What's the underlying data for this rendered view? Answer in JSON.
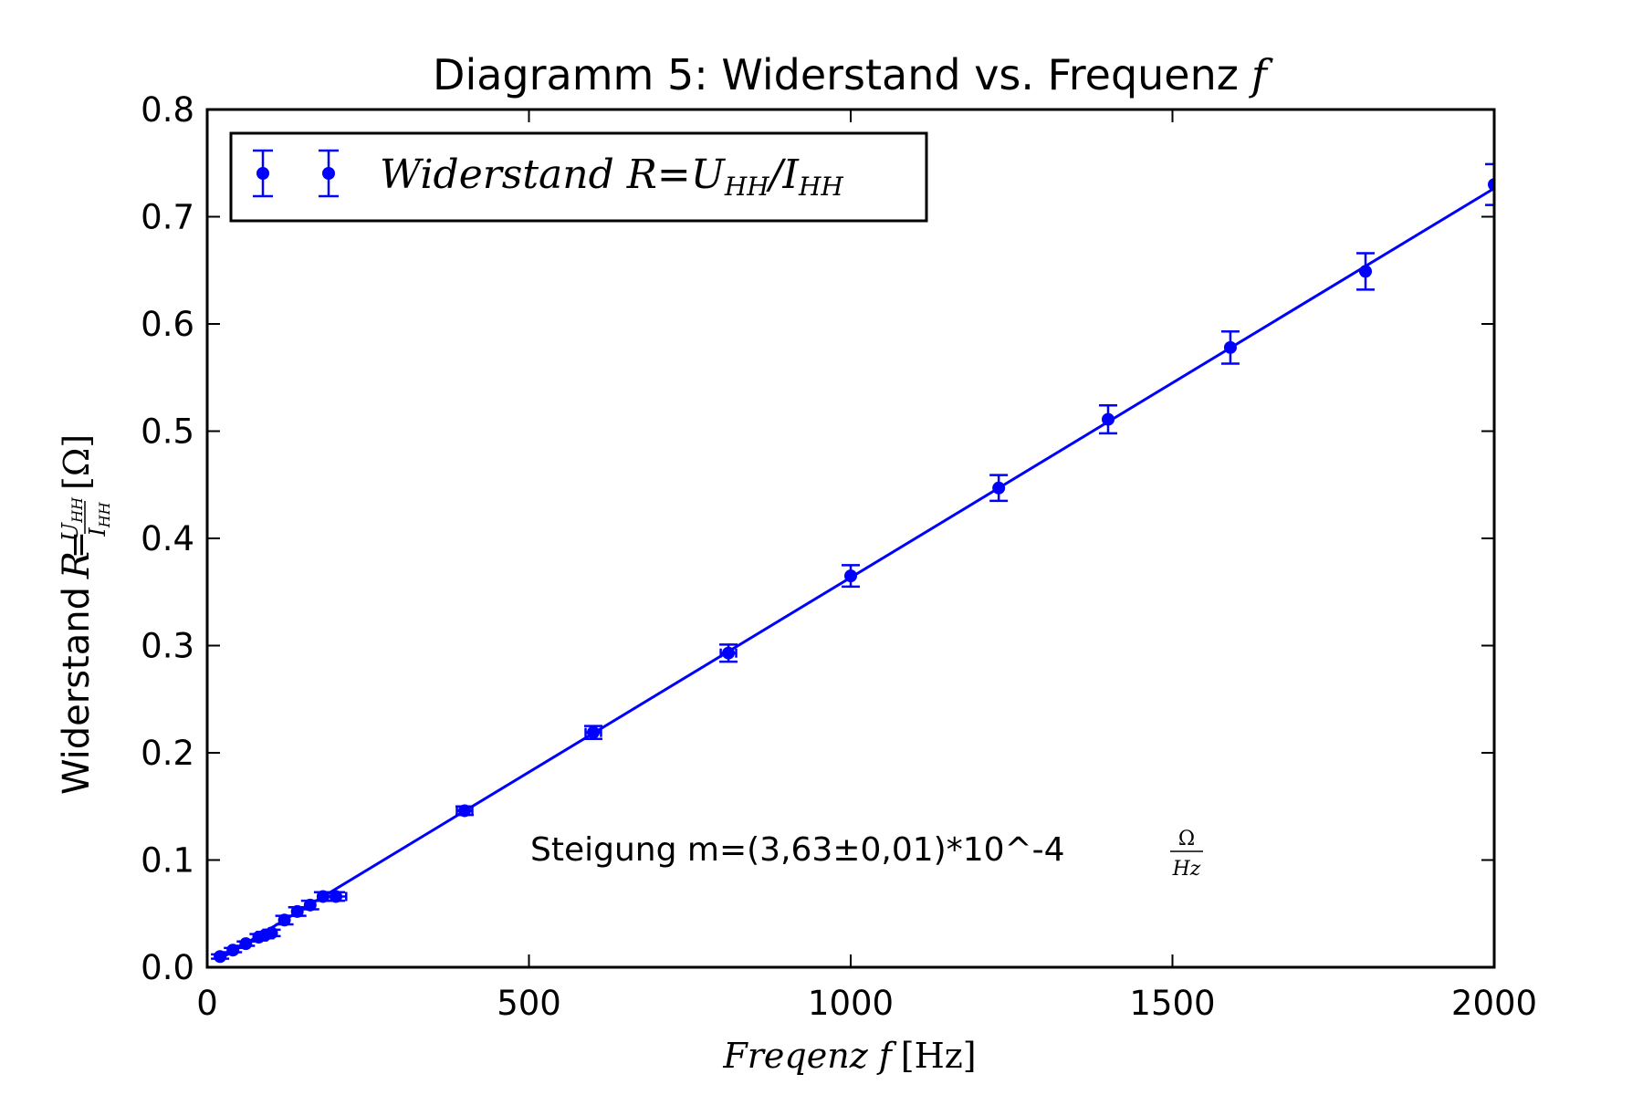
{
  "chart_data": {
    "type": "scatter",
    "title": "Diagramm 5: Widerstand vs. Frequenz",
    "title_symbol": "f",
    "xlabel": "Freqenz",
    "xlabel_symbol": "f",
    "xlabel_unit": "[Hz]",
    "ylabel": "Widerstand",
    "ylabel_symbol": "R",
    "ylabel_eq": "=",
    "ylabel_num": "U",
    "ylabel_num_sub": "HH",
    "ylabel_den": "I",
    "ylabel_den_sub": "HH",
    "ylabel_unit": "[Ω]",
    "xlim": [
      0,
      2000
    ],
    "ylim": [
      0,
      0.8
    ],
    "xticks": [
      "0",
      "500",
      "1000",
      "1500",
      "2000"
    ],
    "yticks": [
      "0.0",
      "0.1",
      "0.2",
      "0.3",
      "0.4",
      "0.5",
      "0.6",
      "0.7",
      "0.8"
    ],
    "grid": false,
    "legend_position": "top-left",
    "color": "#0000ff",
    "series": [
      {
        "name": "Widerstand R=U_HH/I_HH",
        "legend_text": "Widerstand",
        "legend_symbol": "R",
        "legend_eq": "=",
        "legend_u": "U",
        "legend_u_sub": "HH",
        "legend_slash": "/",
        "legend_i": "I",
        "legend_i_sub": "HH",
        "x": [
          20,
          40,
          60,
          80,
          90,
          100,
          120,
          140,
          160,
          180,
          200,
          400,
          600,
          810,
          1000,
          1230,
          1400,
          1590,
          1800,
          2000
        ],
        "y": [
          0.01,
          0.016,
          0.022,
          0.028,
          0.03,
          0.032,
          0.044,
          0.052,
          0.058,
          0.066,
          0.066,
          0.146,
          0.219,
          0.293,
          0.365,
          0.447,
          0.511,
          0.578,
          0.649,
          0.73
        ],
        "yerr": [
          0.002,
          0.002,
          0.002,
          0.003,
          0.003,
          0.003,
          0.004,
          0.004,
          0.004,
          0.004,
          0.004,
          0.004,
          0.006,
          0.008,
          0.01,
          0.012,
          0.013,
          0.015,
          0.017,
          0.019
        ],
        "xerr": [
          0,
          0,
          0,
          0,
          0,
          0,
          0,
          0,
          0,
          0,
          16,
          12,
          12,
          12,
          0,
          0,
          0,
          0,
          0,
          0
        ]
      }
    ],
    "fit_line": {
      "slope": 0.000363,
      "intercept": 0.0005,
      "x_range": [
        20,
        2000
      ]
    },
    "annotation": {
      "text": "Steigung m=(3,63±0,01)*10^-4",
      "unit_num": "Ω",
      "unit_den": "Hz"
    }
  }
}
